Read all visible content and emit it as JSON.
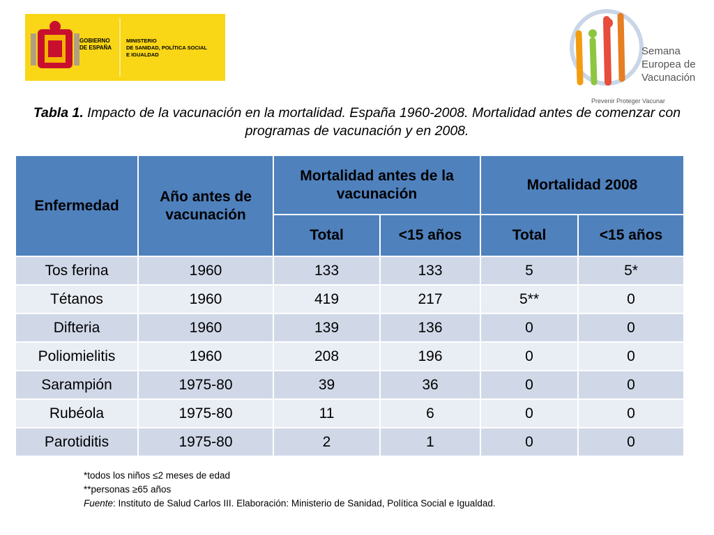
{
  "header": {
    "logo_left": {
      "government": [
        "GOBIERNO",
        "DE ESPAÑA"
      ],
      "ministry": [
        "MINISTERIO",
        "DE SANIDAD, POLÍTICA SOCIAL",
        "E IGUALDAD"
      ]
    },
    "logo_right": {
      "name": [
        "Semana",
        "Europea de",
        "Vacunación"
      ],
      "tagline": "Prevenir Proteger Vacunar"
    }
  },
  "title": {
    "label": "Tabla 1.",
    "text": " Impacto de la vacunación en la mortalidad. España 1960-2008. Mortalidad antes de comenzar con programas de vacunación y en 2008."
  },
  "table": {
    "headers": {
      "disease": "Enfermedad",
      "year": "Año antes de vacunación",
      "before": "Mortalidad antes de la vacunación",
      "mort2008": "Mortalidad 2008",
      "sub": [
        "Total",
        "<15 años",
        "Total",
        "<15 años"
      ]
    },
    "rows": [
      [
        "Tos ferina",
        "1960",
        "133",
        "133",
        "5",
        "5*"
      ],
      [
        "Tétanos",
        "1960",
        "419",
        "217",
        "5**",
        "0"
      ],
      [
        "Difteria",
        "1960",
        "139",
        "136",
        "0",
        "0"
      ],
      [
        "Poliomielitis",
        "1960",
        "208",
        "196",
        "0",
        "0"
      ],
      [
        "Sarampión",
        "1975-80",
        "39",
        "36",
        "0",
        "0"
      ],
      [
        "Rubéola",
        "1975-80",
        "11",
        "6",
        "0",
        "0"
      ],
      [
        "Parotiditis",
        "1975-80",
        "2",
        "1",
        "0",
        "0"
      ]
    ]
  },
  "footnotes": [
    "*todos los niños ≤2 meses de edad",
    "**personas ≥65 años"
  ],
  "source": {
    "label": "Fuente",
    "text": ": Instituto de Salud Carlos III. Elaboración: Ministerio de Sanidad, Política Social e Igualdad."
  }
}
